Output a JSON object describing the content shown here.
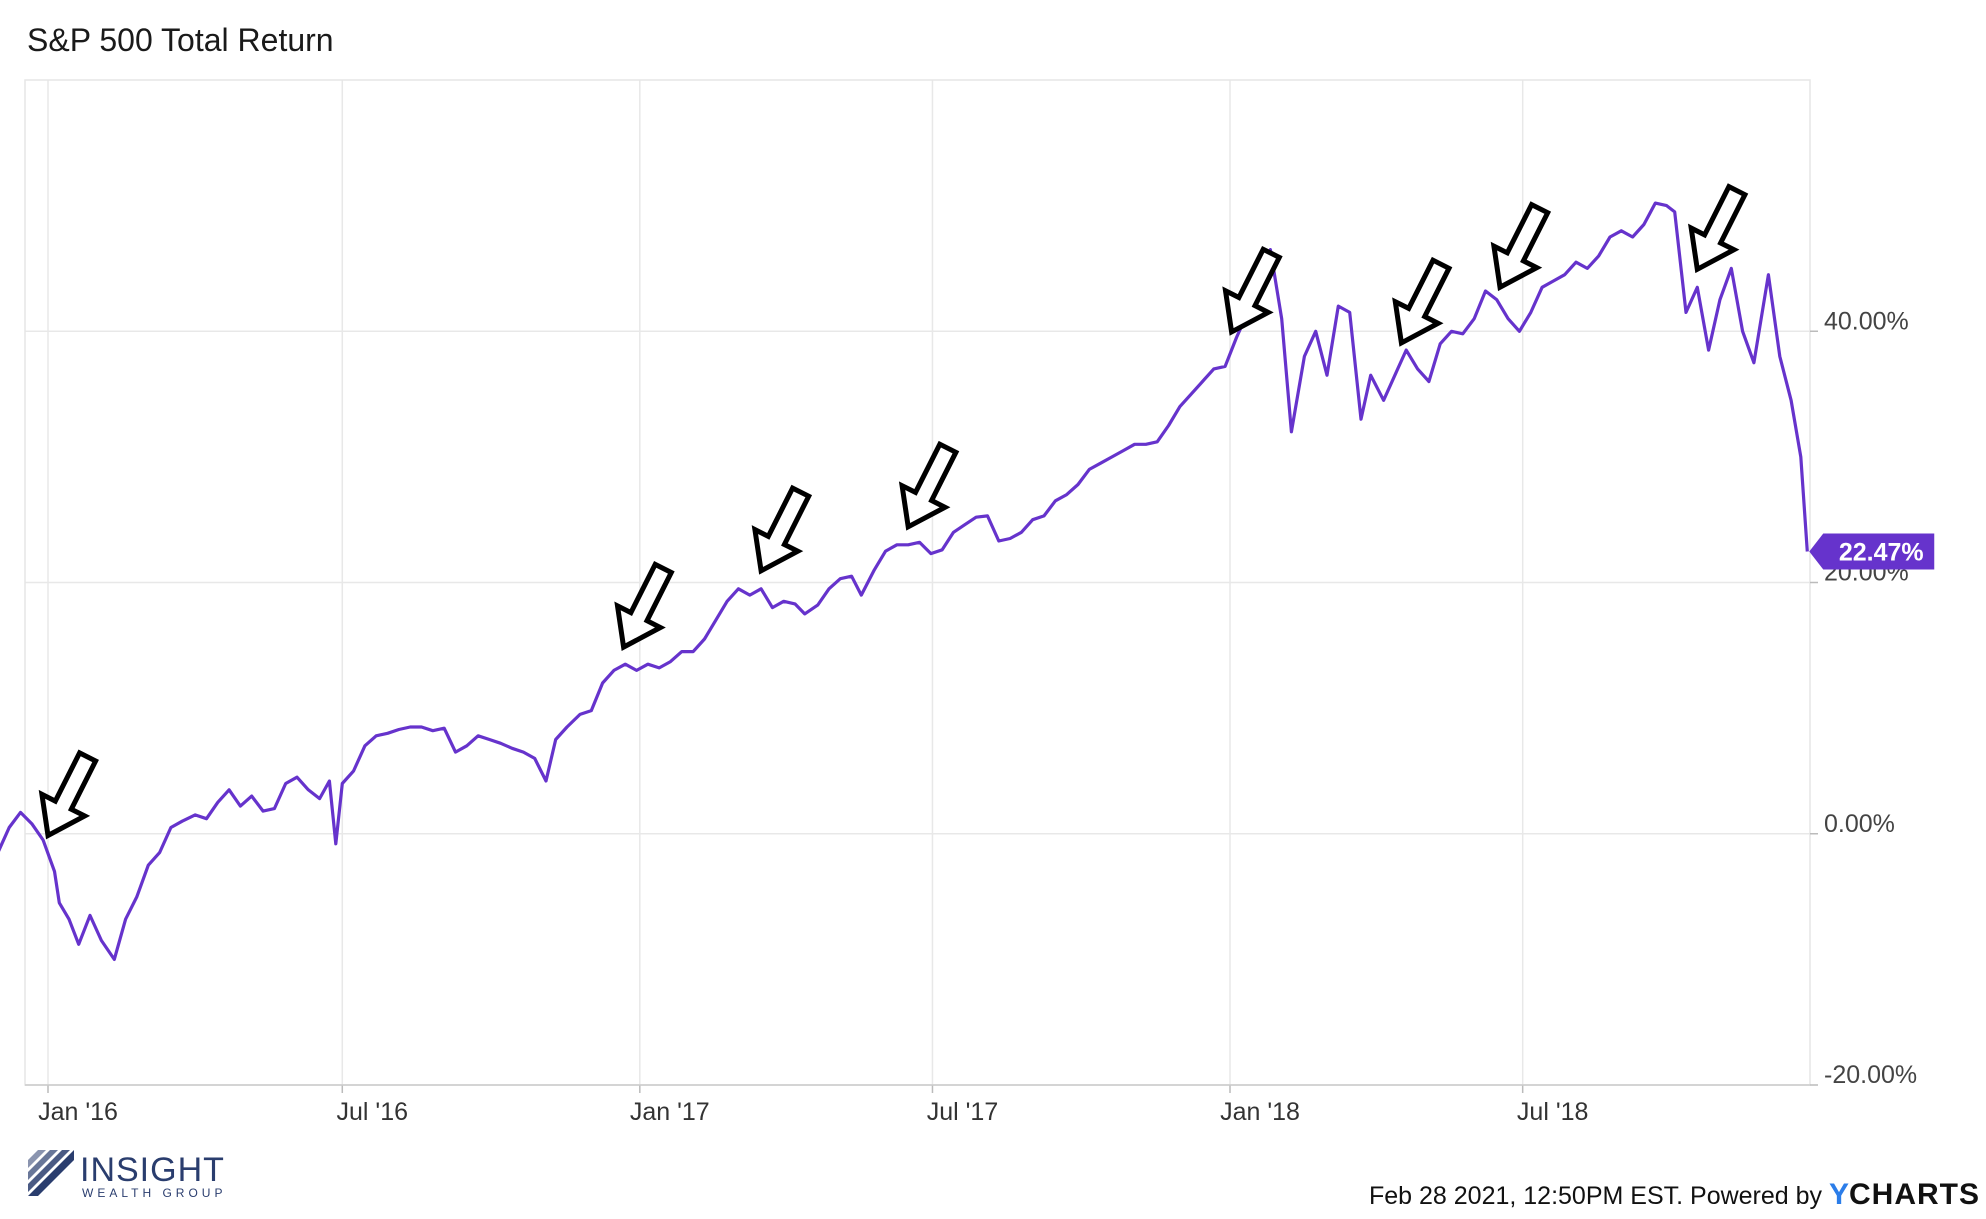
{
  "chart_data": {
    "type": "line",
    "title": "S&P 500 Total Return",
    "xlabel": "",
    "ylabel": "",
    "x_ticks": [
      "Jan '16",
      "Jul '16",
      "Jan '17",
      "Jul '17",
      "Jan '18",
      "Jul '18"
    ],
    "y_ticks": [
      "40.00%",
      "20.00%",
      "0.00%",
      "-20.00%"
    ],
    "ylim": [
      -20,
      60
    ],
    "grid": true,
    "last_value_label": "22.47%",
    "series": [
      {
        "name": "",
        "color": "#6633cc",
        "points": [
          [
            "2015-12-01",
            -1.5
          ],
          [
            "2015-12-08",
            0.5
          ],
          [
            "2015-12-15",
            1.7
          ],
          [
            "2015-12-22",
            0.8
          ],
          [
            "2015-12-29",
            -0.5
          ],
          [
            "2016-01-05",
            -3.0
          ],
          [
            "2016-01-08",
            -5.5
          ],
          [
            "2016-01-14",
            -6.8
          ],
          [
            "2016-01-20",
            -8.8
          ],
          [
            "2016-01-27",
            -6.5
          ],
          [
            "2016-02-03",
            -8.5
          ],
          [
            "2016-02-11",
            -10.0
          ],
          [
            "2016-02-18",
            -6.8
          ],
          [
            "2016-02-25",
            -5.0
          ],
          [
            "2016-03-03",
            -2.5
          ],
          [
            "2016-03-10",
            -1.5
          ],
          [
            "2016-03-17",
            0.5
          ],
          [
            "2016-03-24",
            1.0
          ],
          [
            "2016-04-01",
            1.5
          ],
          [
            "2016-04-08",
            1.2
          ],
          [
            "2016-04-15",
            2.5
          ],
          [
            "2016-04-22",
            3.5
          ],
          [
            "2016-04-29",
            2.2
          ],
          [
            "2016-05-06",
            3.0
          ],
          [
            "2016-05-13",
            1.8
          ],
          [
            "2016-05-20",
            2.0
          ],
          [
            "2016-05-27",
            4.0
          ],
          [
            "2016-06-03",
            4.5
          ],
          [
            "2016-06-10",
            3.5
          ],
          [
            "2016-06-17",
            2.8
          ],
          [
            "2016-06-23",
            4.2
          ],
          [
            "2016-06-27",
            -0.8
          ],
          [
            "2016-07-01",
            4.0
          ],
          [
            "2016-07-08",
            5.0
          ],
          [
            "2016-07-15",
            7.0
          ],
          [
            "2016-07-22",
            7.8
          ],
          [
            "2016-07-29",
            8.0
          ],
          [
            "2016-08-05",
            8.3
          ],
          [
            "2016-08-12",
            8.5
          ],
          [
            "2016-08-19",
            8.5
          ],
          [
            "2016-08-26",
            8.2
          ],
          [
            "2016-09-02",
            8.4
          ],
          [
            "2016-09-09",
            6.5
          ],
          [
            "2016-09-16",
            7.0
          ],
          [
            "2016-09-23",
            7.8
          ],
          [
            "2016-09-30",
            7.5
          ],
          [
            "2016-10-07",
            7.2
          ],
          [
            "2016-10-14",
            6.8
          ],
          [
            "2016-10-21",
            6.5
          ],
          [
            "2016-10-28",
            6.0
          ],
          [
            "2016-11-04",
            4.2
          ],
          [
            "2016-11-10",
            7.5
          ],
          [
            "2016-11-17",
            8.5
          ],
          [
            "2016-11-25",
            9.5
          ],
          [
            "2016-12-02",
            9.8
          ],
          [
            "2016-12-09",
            12.0
          ],
          [
            "2016-12-16",
            13.0
          ],
          [
            "2016-12-23",
            13.5
          ],
          [
            "2016-12-30",
            13.0
          ],
          [
            "2017-01-06",
            13.5
          ],
          [
            "2017-01-13",
            13.2
          ],
          [
            "2017-01-20",
            13.7
          ],
          [
            "2017-01-27",
            14.5
          ],
          [
            "2017-02-03",
            14.5
          ],
          [
            "2017-02-10",
            15.5
          ],
          [
            "2017-02-17",
            17.0
          ],
          [
            "2017-02-24",
            18.5
          ],
          [
            "2017-03-03",
            19.5
          ],
          [
            "2017-03-10",
            19.0
          ],
          [
            "2017-03-17",
            19.5
          ],
          [
            "2017-03-24",
            18.0
          ],
          [
            "2017-03-31",
            18.5
          ],
          [
            "2017-04-07",
            18.3
          ],
          [
            "2017-04-13",
            17.5
          ],
          [
            "2017-04-21",
            18.2
          ],
          [
            "2017-04-28",
            19.5
          ],
          [
            "2017-05-05",
            20.3
          ],
          [
            "2017-05-12",
            20.5
          ],
          [
            "2017-05-18",
            19.0
          ],
          [
            "2017-05-26",
            21.0
          ],
          [
            "2017-06-02",
            22.5
          ],
          [
            "2017-06-09",
            23.0
          ],
          [
            "2017-06-16",
            23.0
          ],
          [
            "2017-06-23",
            23.2
          ],
          [
            "2017-06-30",
            22.3
          ],
          [
            "2017-07-07",
            22.6
          ],
          [
            "2017-07-14",
            24.0
          ],
          [
            "2017-07-21",
            24.6
          ],
          [
            "2017-07-28",
            25.2
          ],
          [
            "2017-08-04",
            25.3
          ],
          [
            "2017-08-11",
            23.3
          ],
          [
            "2017-08-18",
            23.5
          ],
          [
            "2017-08-25",
            24.0
          ],
          [
            "2017-09-01",
            25.0
          ],
          [
            "2017-09-08",
            25.3
          ],
          [
            "2017-09-15",
            26.5
          ],
          [
            "2017-09-22",
            27.0
          ],
          [
            "2017-09-29",
            27.8
          ],
          [
            "2017-10-06",
            29.0
          ],
          [
            "2017-10-13",
            29.5
          ],
          [
            "2017-10-20",
            30.0
          ],
          [
            "2017-10-27",
            30.5
          ],
          [
            "2017-11-03",
            31.0
          ],
          [
            "2017-11-10",
            31.0
          ],
          [
            "2017-11-17",
            31.2
          ],
          [
            "2017-11-24",
            32.5
          ],
          [
            "2017-12-01",
            34.0
          ],
          [
            "2017-12-08",
            35.0
          ],
          [
            "2017-12-15",
            36.0
          ],
          [
            "2017-12-22",
            37.0
          ],
          [
            "2017-12-29",
            37.2
          ],
          [
            "2018-01-05",
            39.5
          ],
          [
            "2018-01-12",
            41.5
          ],
          [
            "2018-01-19",
            43.0
          ],
          [
            "2018-01-26",
            46.5
          ],
          [
            "2018-02-02",
            41.0
          ],
          [
            "2018-02-08",
            32.0
          ],
          [
            "2018-02-16",
            38.0
          ],
          [
            "2018-02-23",
            40.0
          ],
          [
            "2018-03-02",
            36.5
          ],
          [
            "2018-03-09",
            42.0
          ],
          [
            "2018-03-16",
            41.5
          ],
          [
            "2018-03-23",
            33.0
          ],
          [
            "2018-03-29",
            36.5
          ],
          [
            "2018-04-06",
            34.5
          ],
          [
            "2018-04-13",
            36.5
          ],
          [
            "2018-04-20",
            38.5
          ],
          [
            "2018-04-27",
            37.0
          ],
          [
            "2018-05-04",
            36.0
          ],
          [
            "2018-05-11",
            39.0
          ],
          [
            "2018-05-18",
            40.0
          ],
          [
            "2018-05-25",
            39.8
          ],
          [
            "2018-06-01",
            41.0
          ],
          [
            "2018-06-08",
            43.2
          ],
          [
            "2018-06-15",
            42.5
          ],
          [
            "2018-06-22",
            41.0
          ],
          [
            "2018-06-29",
            40.0
          ],
          [
            "2018-07-06",
            41.5
          ],
          [
            "2018-07-13",
            43.5
          ],
          [
            "2018-07-20",
            44.0
          ],
          [
            "2018-07-27",
            44.5
          ],
          [
            "2018-08-03",
            45.5
          ],
          [
            "2018-08-10",
            45.0
          ],
          [
            "2018-08-17",
            46.0
          ],
          [
            "2018-08-24",
            47.5
          ],
          [
            "2018-08-31",
            48.0
          ],
          [
            "2018-09-07",
            47.5
          ],
          [
            "2018-09-14",
            48.5
          ],
          [
            "2018-09-21",
            50.2
          ],
          [
            "2018-09-28",
            50.0
          ],
          [
            "2018-10-03",
            49.5
          ],
          [
            "2018-10-10",
            41.5
          ],
          [
            "2018-10-17",
            43.5
          ],
          [
            "2018-10-24",
            38.5
          ],
          [
            "2018-10-31",
            42.5
          ],
          [
            "2018-11-07",
            45.0
          ],
          [
            "2018-11-14",
            40.0
          ],
          [
            "2018-11-21",
            37.5
          ],
          [
            "2018-11-30",
            44.5
          ],
          [
            "2018-12-07",
            38.0
          ],
          [
            "2018-12-14",
            34.5
          ],
          [
            "2018-12-20",
            30.0
          ],
          [
            "2018-12-24",
            22.47
          ]
        ]
      }
    ],
    "arrow_dates": [
      "2016-01-01",
      "2016-12-22",
      "2017-03-17",
      "2017-06-16",
      "2018-01-02",
      "2018-04-17",
      "2018-06-17",
      "2018-10-17"
    ]
  },
  "brand": {
    "name": "INSIGHT",
    "sub": "WEALTH GROUP"
  },
  "footer": {
    "text": "Feb 28 2021, 12:50PM EST. Powered by ",
    "brand_y": "Y",
    "brand_rest": "CHARTS"
  }
}
